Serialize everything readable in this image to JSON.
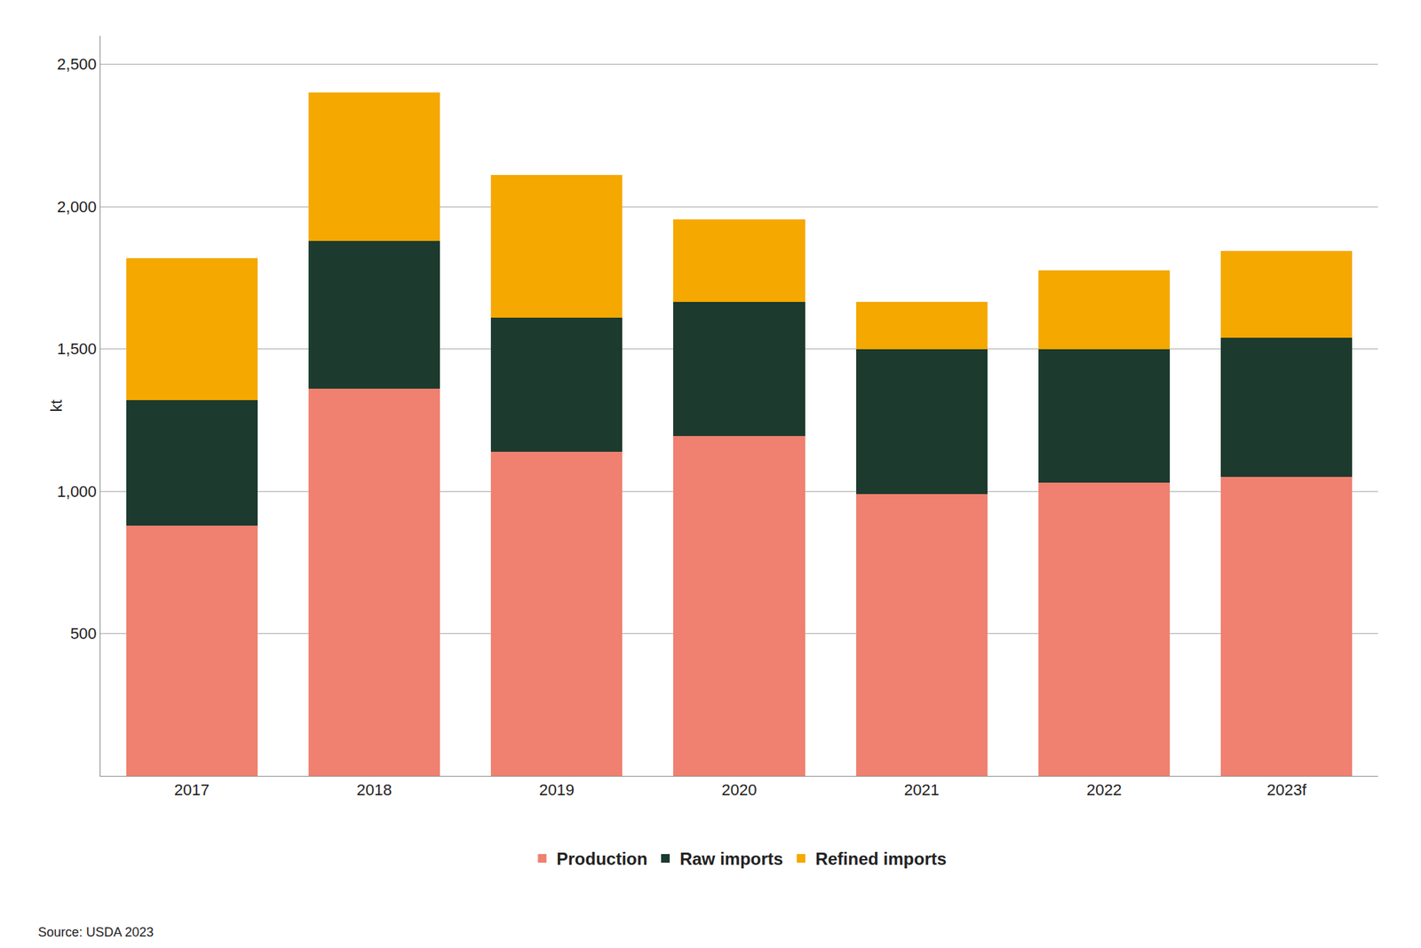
{
  "chart_data": {
    "type": "bar",
    "stacked": true,
    "categories": [
      "2017",
      "2018",
      "2019",
      "2020",
      "2021",
      "2022",
      "2023f"
    ],
    "series": [
      {
        "name": "Production",
        "color": "#F08070",
        "values": [
          880,
          1360,
          1140,
          1195,
          990,
          1030,
          1050
        ]
      },
      {
        "name": "Raw imports",
        "color": "#1C3A2E",
        "values": [
          440,
          520,
          470,
          470,
          510,
          470,
          490
        ]
      },
      {
        "name": "Refined imports",
        "color": "#F5A800",
        "values": [
          500,
          520,
          500,
          290,
          165,
          275,
          305
        ]
      }
    ],
    "ylabel": "kt",
    "ylim": [
      0,
      2600
    ],
    "yticks": [
      {
        "value": 0,
        "label": ""
      },
      500,
      {
        "value": 1000,
        "label": "1,000"
      },
      {
        "value": 1500,
        "label": "1,500"
      },
      {
        "value": 2000,
        "label": "2,000"
      },
      {
        "value": 2500,
        "label": "2,500"
      }
    ],
    "grid": true,
    "legend": "bottom",
    "annotations": [
      "Source: USDA 2023"
    ]
  }
}
